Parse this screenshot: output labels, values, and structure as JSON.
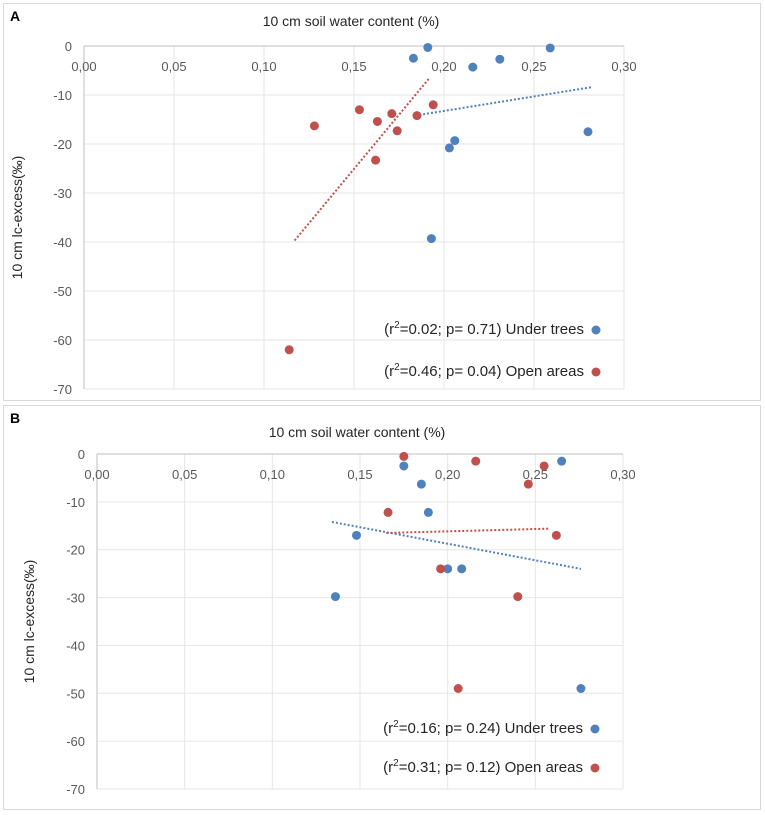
{
  "chart_data": [
    {
      "panel": "A",
      "type": "scatter",
      "title": "10 cm soil water content (%)",
      "ylabel": "10 cm lc-excess(‰)",
      "xlim": [
        0,
        0.3
      ],
      "ylim": [
        -70,
        0
      ],
      "xticks": [
        "0,00",
        "0,05",
        "0,10",
        "0,15",
        "0,20",
        "0,25",
        "0,30"
      ],
      "yticks": [
        "0",
        "-10",
        "-20",
        "-30",
        "-40",
        "-50",
        "-60",
        "-70"
      ],
      "grid": true,
      "series": [
        {
          "name": "Under trees",
          "legend_prefix": "(r",
          "legend_sup": "2",
          "legend_text": "=0.02; p= 0.71) Under trees",
          "color": "#4f81bd",
          "points": [
            [
              0.183,
              -2.5
            ],
            [
              0.191,
              -0.3
            ],
            [
              0.216,
              -4.3
            ],
            [
              0.231,
              -2.7
            ],
            [
              0.259,
              -0.4
            ],
            [
              0.28,
              -17.5
            ],
            [
              0.206,
              -19.3
            ],
            [
              0.203,
              -20.8
            ],
            [
              0.193,
              -39.3
            ]
          ],
          "trend": [
            [
              0.184,
              -14.2
            ],
            [
              0.282,
              -8.4
            ]
          ]
        },
        {
          "name": "Open areas",
          "legend_prefix": "(r",
          "legend_sup": "2",
          "legend_text": "=0.46; p= 0.04) Open areas",
          "color": "#c0504d",
          "points": [
            [
              0.128,
              -16.3
            ],
            [
              0.153,
              -13.0
            ],
            [
              0.163,
              -15.4
            ],
            [
              0.171,
              -13.8
            ],
            [
              0.174,
              -17.3
            ],
            [
              0.185,
              -14.2
            ],
            [
              0.194,
              -12.0
            ],
            [
              0.162,
              -23.3
            ],
            [
              0.114,
              -62.0
            ]
          ],
          "trend": [
            [
              0.117,
              -39.7
            ],
            [
              0.192,
              -6.5
            ]
          ]
        }
      ]
    },
    {
      "panel": "B",
      "type": "scatter",
      "title": "10 cm soil water content (%)",
      "ylabel": "10 cm lc-excess(‰)",
      "xlim": [
        0,
        0.3
      ],
      "ylim": [
        -70,
        0
      ],
      "xticks": [
        "0,00",
        "0,05",
        "0,10",
        "0,15",
        "0,20",
        "0,25",
        "0,30"
      ],
      "yticks": [
        "0",
        "-10",
        "-20",
        "-30",
        "-40",
        "-50",
        "-60",
        "-70"
      ],
      "grid": true,
      "series": [
        {
          "name": "Under trees",
          "legend_prefix": "(r",
          "legend_sup": "2",
          "legend_text": "=0.16; p= 0.24) Under trees",
          "color": "#4f81bd",
          "points": [
            [
              0.175,
              -2.5
            ],
            [
              0.185,
              -6.3
            ],
            [
              0.189,
              -12.2
            ],
            [
              0.265,
              -1.5
            ],
            [
              0.148,
              -17.0
            ],
            [
              0.136,
              -29.8
            ],
            [
              0.2,
              -24.0
            ],
            [
              0.208,
              -24.0
            ],
            [
              0.276,
              -49.0
            ]
          ],
          "trend": [
            [
              0.134,
              -14.2
            ],
            [
              0.276,
              -24.0
            ]
          ]
        },
        {
          "name": "Open areas",
          "legend_prefix": "(r",
          "legend_sup": "2",
          "legend_text": "=0.31; p= 0.12) Open areas",
          "color": "#c0504d",
          "points": [
            [
              0.175,
              -0.5
            ],
            [
              0.216,
              -1.5
            ],
            [
              0.255,
              -2.5
            ],
            [
              0.246,
              -6.3
            ],
            [
              0.166,
              -12.2
            ],
            [
              0.262,
              -17.0
            ],
            [
              0.196,
              -24.0
            ],
            [
              0.24,
              -29.8
            ],
            [
              0.206,
              -49.0
            ]
          ],
          "trend": [
            [
              0.165,
              -16.5
            ],
            [
              0.258,
              -15.6
            ]
          ]
        }
      ]
    }
  ],
  "panels": {
    "a_label": "A",
    "b_label": "B"
  }
}
